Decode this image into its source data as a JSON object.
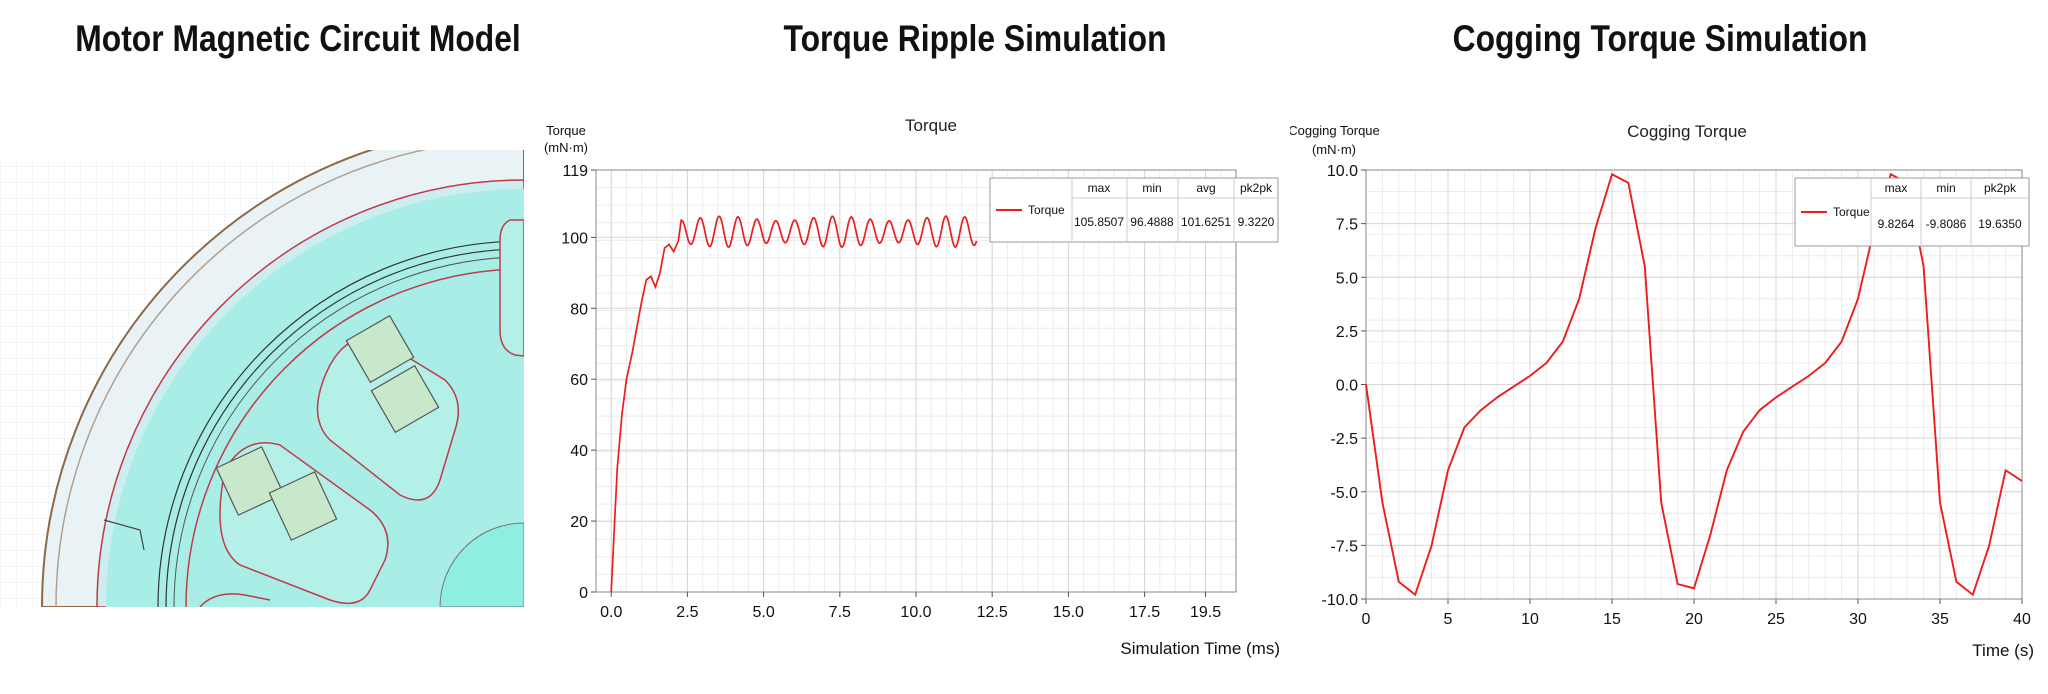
{
  "panels": {
    "motor": {
      "title": "Motor Magnetic Circuit Model"
    },
    "ripple": {
      "title": "Torque Ripple Simulation"
    },
    "cogging": {
      "title": "Cogging Torque Simulation"
    }
  },
  "chart_data": [
    {
      "type": "line",
      "title": "Torque",
      "ylabel": [
        "Torque",
        "(mN·m)"
      ],
      "xlabel": "Simulation Time (ms)",
      "xlim": [
        -0.5,
        20.5
      ],
      "ylim": [
        0,
        119
      ],
      "xticks": [
        "0.0",
        "2.5",
        "5.0",
        "7.5",
        "10.0",
        "12.5",
        "15.0",
        "17.5",
        "19.5"
      ],
      "xtick_values": [
        0,
        2.5,
        5,
        7.5,
        10,
        12.5,
        15,
        17.5,
        19.5
      ],
      "yticks": [
        "0",
        "20",
        "40",
        "60",
        "80",
        "100",
        "119"
      ],
      "ytick_values": [
        0,
        20,
        40,
        60,
        80,
        100,
        119
      ],
      "grid": true,
      "color": "#ee1c1c",
      "ripple": {
        "mean": 101.6,
        "amplitude": 4.4,
        "period_ms": 0.62,
        "start_ms": 2.3,
        "end_ms": 12.0
      },
      "series": [
        {
          "name": "Torque",
          "x": [
            0,
            0.1,
            0.2,
            0.35,
            0.5,
            0.7,
            0.85,
            1.0,
            1.15,
            1.3,
            1.45,
            1.6,
            1.75,
            1.9,
            2.05,
            2.2
          ],
          "y": [
            0,
            18,
            35,
            50,
            60,
            68,
            75,
            82,
            88,
            89,
            86,
            90,
            97,
            98,
            96,
            99
          ]
        }
      ],
      "stats_table": {
        "headers": [
          "max",
          "min",
          "avg",
          "pk2pk"
        ],
        "row_label": "Torque",
        "values": [
          "105.8507",
          "96.4888",
          "101.6251",
          "9.3220"
        ]
      }
    },
    {
      "type": "line",
      "title": "Cogging Torque",
      "ylabel": [
        "Cogging Torque",
        "(mN·m)"
      ],
      "xlabel": "Time (s)",
      "xlim": [
        0,
        40
      ],
      "ylim": [
        -10,
        10
      ],
      "xticks": [
        "0",
        "5",
        "10",
        "15",
        "20",
        "25",
        "30",
        "35",
        "40"
      ],
      "xtick_values": [
        0,
        5,
        10,
        15,
        20,
        25,
        30,
        35,
        40
      ],
      "yticks": [
        "-10.0",
        "-7.5",
        "-5.0",
        "-2.5",
        "0.0",
        "2.5",
        "5.0",
        "7.5",
        "10.0"
      ],
      "ytick_values": [
        -10,
        -7.5,
        -5,
        -2.5,
        0,
        2.5,
        5,
        7.5,
        10
      ],
      "grid": true,
      "color": "#ee1c1c",
      "series": [
        {
          "name": "Torque",
          "x": [
            0,
            1,
            2,
            3,
            4,
            5,
            6,
            7,
            8,
            9,
            10,
            11,
            12,
            13,
            14,
            15,
            16,
            17,
            18,
            19,
            20,
            21,
            22,
            23,
            24,
            25,
            26,
            27,
            28,
            29,
            30,
            31,
            32,
            33,
            34,
            35,
            36,
            37,
            38,
            39,
            40
          ],
          "y": [
            0,
            -5.5,
            -9.2,
            -9.8,
            -7.5,
            -4,
            -2,
            -1.2,
            -0.6,
            -0.1,
            0.4,
            1,
            2,
            4,
            7.3,
            9.8,
            9.4,
            5.5,
            -5.5,
            -9.3,
            -9.5,
            -7,
            -4,
            -2.2,
            -1.2,
            -0.6,
            -0.1,
            0.4,
            1,
            2,
            4,
            7.3,
            9.8,
            9.4,
            5.5,
            -5.5,
            -9.2,
            -9.8,
            -7.5,
            -4,
            -4.5
          ]
        }
      ],
      "stats_table": {
        "headers": [
          "max",
          "min",
          "pk2pk"
        ],
        "row_label": "Torque",
        "values": [
          "9.8264",
          "-9.8086",
          "19.6350"
        ]
      }
    }
  ],
  "colors": {
    "rotor_fill": "#a8eee6",
    "stator_fill": "#cfeef0",
    "field_green": "#22c83a",
    "field_blue": "#2a78e8",
    "outline_red": "#c03a48",
    "magnet_fill": "#c8e8cc"
  }
}
